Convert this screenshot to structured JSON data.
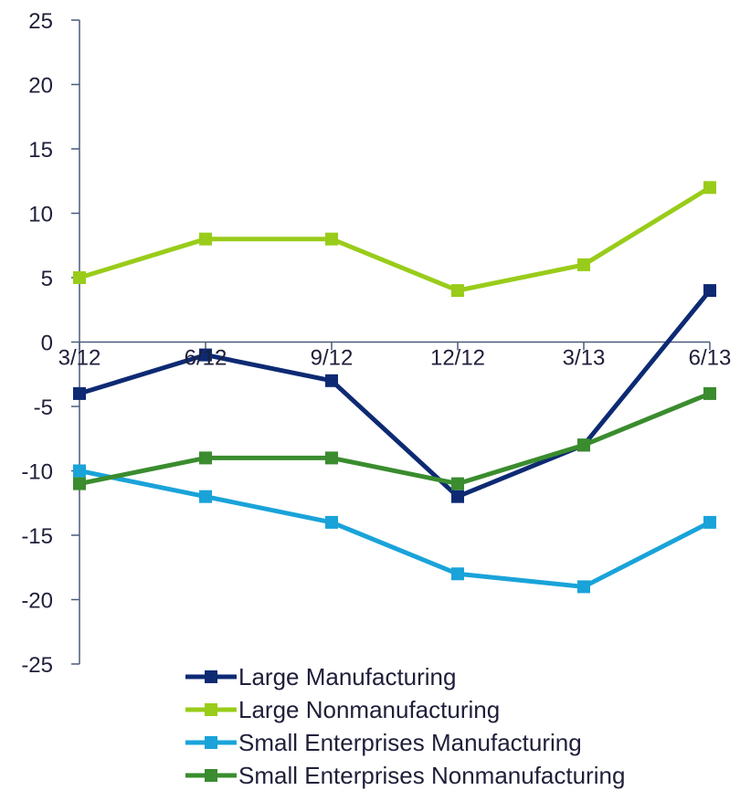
{
  "chart_data": {
    "type": "line",
    "categories": [
      "3/12",
      "6/12",
      "9/12",
      "12/12",
      "3/13",
      "6/13"
    ],
    "ylim": [
      -25,
      25
    ],
    "y_ticks": [
      25,
      20,
      15,
      10,
      5,
      0,
      -5,
      -10,
      -15,
      -20,
      -25
    ],
    "grid": false,
    "legend_position": "bottom",
    "series": [
      {
        "name": "Large Manufacturing",
        "color": "#0d2a73",
        "values": [
          -4,
          -1,
          -3,
          -12,
          -8,
          4
        ]
      },
      {
        "name": "Large Nonmanufacturing",
        "color": "#99cc1a",
        "values": [
          5,
          8,
          8,
          4,
          6,
          12
        ]
      },
      {
        "name": "Small Enterprises Manufacturing",
        "color": "#1aa3d9",
        "values": [
          -10,
          -12,
          -14,
          -18,
          -19,
          -14
        ]
      },
      {
        "name": "Small Enterprises Nonmanufacturing",
        "color": "#3a8c2e",
        "values": [
          -11,
          -9,
          -9,
          -11,
          -8,
          -4
        ]
      }
    ]
  }
}
